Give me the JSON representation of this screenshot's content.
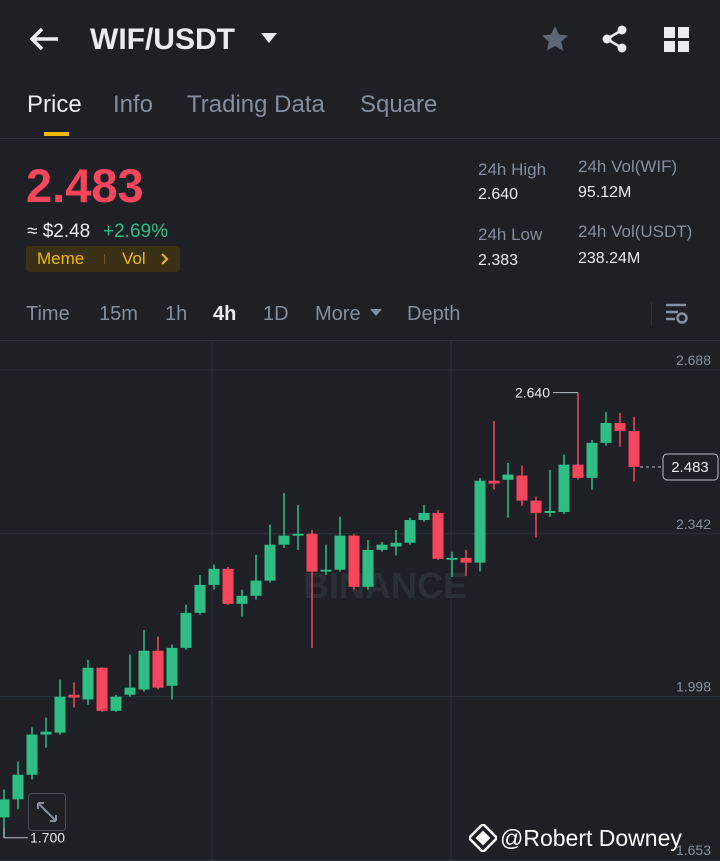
{
  "header": {
    "title": "WIF/USDT"
  },
  "tabs": [
    "Price",
    "Info",
    "Trading Data",
    "Square"
  ],
  "ticker": {
    "price": "2.483",
    "usd": "≈ $2.48",
    "change": "+2.69%",
    "tags": [
      "Meme",
      "Vol"
    ]
  },
  "stats": [
    {
      "label": "24h High",
      "value": "2.640"
    },
    {
      "label": "24h Vol(WIF)",
      "value": "95.12M"
    },
    {
      "label": "24h Low",
      "value": "2.383"
    },
    {
      "label": "24h Vol(USDT)",
      "value": "238.24M"
    }
  ],
  "intervals": [
    "Time",
    "15m",
    "1h",
    "4h",
    "1D",
    "More",
    "Depth"
  ],
  "chart_data": {
    "type": "candlestick",
    "watermark": "BINANCE",
    "up_color": "#2ebd85",
    "down_color": "#f6465d",
    "open": [
      1.743,
      1.781,
      1.833,
      1.918,
      1.922,
      2.002,
      1.992,
      2.059,
      1.968,
      2.002,
      2.013,
      2.095,
      2.021,
      2.101,
      2.175,
      2.234,
      2.268,
      2.194,
      2.211,
      2.243,
      2.319,
      2.338,
      2.342,
      2.262,
      2.266,
      2.338,
      2.23,
      2.308,
      2.315,
      2.323,
      2.371,
      2.386,
      2.287,
      2.291,
      2.281,
      2.454,
      2.456,
      2.465,
      2.412,
      2.386,
      2.388,
      2.488,
      2.46,
      2.534,
      2.576,
      2.559
    ],
    "high": [
      1.802,
      1.861,
      1.933,
      1.954,
      2.034,
      2.028,
      2.076,
      2.06,
      2.002,
      2.087,
      2.139,
      2.125,
      2.108,
      2.192,
      2.255,
      2.277,
      2.272,
      2.224,
      2.298,
      2.361,
      2.428,
      2.403,
      2.35,
      2.319,
      2.378,
      2.342,
      2.329,
      2.325,
      2.35,
      2.376,
      2.403,
      2.392,
      2.304,
      2.308,
      2.46,
      2.58,
      2.492,
      2.486,
      2.42,
      2.477,
      2.509,
      2.64,
      2.54,
      2.599,
      2.597,
      2.589
    ],
    "low": [
      1.7,
      1.76,
      1.823,
      1.89,
      1.918,
      1.975,
      1.981,
      1.966,
      1.966,
      1.998,
      2.009,
      2.013,
      1.992,
      2.097,
      2.171,
      2.224,
      2.192,
      2.167,
      2.203,
      2.239,
      2.312,
      2.308,
      2.101,
      2.255,
      2.262,
      2.224,
      2.224,
      2.304,
      2.296,
      2.319,
      2.367,
      2.287,
      2.251,
      2.253,
      2.262,
      2.435,
      2.376,
      2.401,
      2.334,
      2.378,
      2.384,
      2.456,
      2.435,
      2.528,
      2.526,
      2.452
    ],
    "close": [
      1.781,
      1.833,
      1.918,
      1.924,
      1.998,
      1.996,
      2.059,
      1.968,
      1.998,
      2.017,
      2.095,
      2.017,
      2.101,
      2.175,
      2.234,
      2.268,
      2.194,
      2.211,
      2.243,
      2.319,
      2.338,
      2.342,
      2.262,
      2.266,
      2.338,
      2.23,
      2.308,
      2.319,
      2.323,
      2.371,
      2.386,
      2.289,
      2.291,
      2.281,
      2.454,
      2.448,
      2.467,
      2.412,
      2.386,
      2.39,
      2.488,
      2.46,
      2.534,
      2.576,
      2.559,
      2.483
    ],
    "ylim": [
      1.653,
      2.747
    ],
    "yticks": [
      2.688,
      2.342,
      1.998,
      1.653
    ],
    "grid": true,
    "high_marker": {
      "value": 2.64,
      "label": "2.640"
    },
    "low_marker": {
      "value": 1.7,
      "label": "1.700"
    },
    "last_price": 2.483
  },
  "watermark": "@Robert Downey"
}
